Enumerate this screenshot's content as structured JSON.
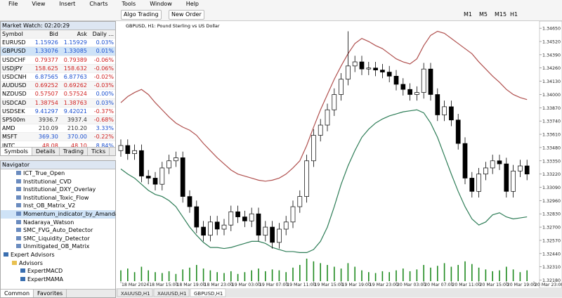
{
  "menu": [
    "File",
    "View",
    "Insert",
    "Charts",
    "Tools",
    "Window",
    "Help"
  ],
  "toolbar": {
    "algo_trading": "Algo Trading",
    "new_order": "New Order",
    "timeframes": [
      "M1",
      "M5",
      "M15",
      "H1"
    ]
  },
  "market_watch": {
    "title": "Market Watch: 02:20:29",
    "columns": [
      "Symbol",
      "Bid",
      "Ask",
      "Daily ..."
    ],
    "rows": [
      {
        "symbol": "EURUSD",
        "bid": "1.15926",
        "ask": "1.15929",
        "change": "0.03%",
        "tick": "up"
      },
      {
        "symbol": "GBPUSD",
        "bid": "1.33076",
        "ask": "1.33085",
        "change": "0.01%",
        "tick": "up",
        "selected": true
      },
      {
        "symbol": "USDCHF",
        "bid": "0.79377",
        "ask": "0.79389",
        "change": "-0.06%",
        "tick": "down"
      },
      {
        "symbol": "USDJPY",
        "bid": "158.625",
        "ask": "158.632",
        "change": "-0.06%",
        "tick": "down"
      },
      {
        "symbol": "USDCNH",
        "bid": "6.87565",
        "ask": "6.87763",
        "change": "-0.02%",
        "tick": "up"
      },
      {
        "symbol": "AUDUSD",
        "bid": "0.69252",
        "ask": "0.69262",
        "change": "-0.03%",
        "tick": "down"
      },
      {
        "symbol": "NZDUSD",
        "bid": "0.57507",
        "ask": "0.57524",
        "change": "0.00%",
        "tick": "down"
      },
      {
        "symbol": "USDCAD",
        "bid": "1.38754",
        "ask": "1.38763",
        "change": "0.03%",
        "tick": "down"
      },
      {
        "symbol": "USDSEK",
        "bid": "9.41297",
        "ask": "9.42021",
        "change": "-0.37%",
        "tick": "up"
      },
      {
        "symbol": "SP500m",
        "bid": "3936.7",
        "ask": "3937.4",
        "change": "-0.68%",
        "tick": "none"
      },
      {
        "symbol": "AMD",
        "bid": "210.09",
        "ask": "210.20",
        "change": "3.33%",
        "tick": "none"
      },
      {
        "symbol": "MSFT",
        "bid": "369.30",
        "ask": "370.00",
        "change": "-0.22%",
        "tick": "up"
      },
      {
        "symbol": "INTC",
        "bid": "48.08",
        "ask": "48.10",
        "change": "8.84%",
        "tick": "down"
      }
    ],
    "tabs": [
      "Symbols",
      "Details",
      "Trading",
      "Ticks"
    ]
  },
  "navigator": {
    "title": "Navigator",
    "items": [
      {
        "label": "ICT_True_Open",
        "kind": "indicator"
      },
      {
        "label": "Institutional_CVD",
        "kind": "indicator"
      },
      {
        "label": "Institutional_DXY_Overlay",
        "kind": "indicator"
      },
      {
        "label": "Institutional_Toxic_Flow",
        "kind": "indicator"
      },
      {
        "label": "Inst_OB_Matrix_V2",
        "kind": "indicator"
      },
      {
        "label": "Momentum_indicator_by_AmandaV",
        "kind": "indicator",
        "selected": true
      },
      {
        "label": "Nadaraya_Watson",
        "kind": "indicator"
      },
      {
        "label": "SMC_FVG_Auto_Detector",
        "kind": "indicator"
      },
      {
        "label": "SMC_Liquidity_Detector",
        "kind": "indicator"
      },
      {
        "label": "Unmitigated_OB_Matrix",
        "kind": "indicator"
      },
      {
        "label": "Expert Advisors",
        "kind": "root"
      },
      {
        "label": "Advisors",
        "kind": "folder"
      },
      {
        "label": "ExpertMACD",
        "kind": "expert"
      },
      {
        "label": "ExpertMAMA",
        "kind": "expert"
      }
    ],
    "tabs": [
      "Common",
      "Favorites"
    ]
  },
  "chart": {
    "title": "GBPUSD, H1:  Pound Sterling vs US Dollar",
    "ylim": [
      1.3217,
      1.3472
    ],
    "yticks": [
      {
        "value": 1.3218,
        "label": "1.32180"
      },
      {
        "value": 1.3231,
        "label": "1.32310"
      },
      {
        "value": 1.3244,
        "label": "1.32440"
      },
      {
        "value": 1.3257,
        "label": "1.32570"
      },
      {
        "value": 1.327,
        "label": "1.32700"
      },
      {
        "value": 1.3283,
        "label": "1.32830"
      },
      {
        "value": 1.3296,
        "label": "1.32960"
      },
      {
        "value": 1.3309,
        "label": "1.33090"
      },
      {
        "value": 1.3322,
        "label": "1.33220"
      },
      {
        "value": 1.3335,
        "label": "1.33350"
      },
      {
        "value": 1.3348,
        "label": "1.33480"
      },
      {
        "value": 1.3361,
        "label": "1.33610"
      },
      {
        "value": 1.3374,
        "label": "1.33740"
      },
      {
        "value": 1.3387,
        "label": "1.33870"
      },
      {
        "value": 1.34,
        "label": "1.34000"
      },
      {
        "value": 1.3413,
        "label": "1.34130"
      },
      {
        "value": 1.3426,
        "label": "1.34260"
      },
      {
        "value": 1.3439,
        "label": "1.34390"
      },
      {
        "value": 1.3452,
        "label": "1.34520"
      },
      {
        "value": 1.3465,
        "label": "1.34650"
      }
    ],
    "xlabels": [
      "18 Mar 2024",
      "18 Mar 15:00",
      "18 Mar 19:00",
      "18 Mar 23:00",
      "19 Mar 03:00",
      "19 Mar 07:00",
      "19 Mar 11:00",
      "19 Mar 15:00",
      "19 Mar 19:00",
      "19 Mar 23:00",
      "20 Mar 03:00",
      "20 Mar 07:00",
      "20 Mar 11:00",
      "20 Mar 15:00",
      "20 Mar 19:00",
      "20 Mar 23:00"
    ],
    "candles": [
      [
        1.3345,
        1.3356,
        1.3339,
        1.335
      ],
      [
        1.335,
        1.3356,
        1.3336,
        1.3342
      ],
      [
        1.3342,
        1.3351,
        1.3336,
        1.3345
      ],
      [
        1.3345,
        1.3351,
        1.3314,
        1.332
      ],
      [
        1.332,
        1.3326,
        1.3312,
        1.3318
      ],
      [
        1.3318,
        1.3324,
        1.3306,
        1.3312
      ],
      [
        1.3312,
        1.3334,
        1.3306,
        1.3328
      ],
      [
        1.3328,
        1.3341,
        1.3322,
        1.3335
      ],
      [
        1.3335,
        1.3344,
        1.3329,
        1.3338
      ],
      [
        1.3338,
        1.3344,
        1.3294,
        1.33
      ],
      [
        1.33,
        1.3306,
        1.3284,
        1.329
      ],
      [
        1.329,
        1.3296,
        1.3264,
        1.327
      ],
      [
        1.327,
        1.3276,
        1.3256,
        1.3262
      ],
      [
        1.3262,
        1.3281,
        1.3256,
        1.3275
      ],
      [
        1.3275,
        1.3281,
        1.3262,
        1.3268
      ],
      [
        1.3268,
        1.3278,
        1.3262,
        1.3272
      ],
      [
        1.3272,
        1.3291,
        1.3266,
        1.3285
      ],
      [
        1.3285,
        1.3291,
        1.3274,
        1.328
      ],
      [
        1.328,
        1.3286,
        1.327,
        1.3276
      ],
      [
        1.3276,
        1.3289,
        1.327,
        1.3283
      ],
      [
        1.3283,
        1.3289,
        1.3256,
        1.3262
      ],
      [
        1.3262,
        1.3276,
        1.3256,
        1.327
      ],
      [
        1.327,
        1.3276,
        1.3249,
        1.3255
      ],
      [
        1.3255,
        1.3274,
        1.3249,
        1.3268
      ],
      [
        1.3268,
        1.3281,
        1.3262,
        1.3275
      ],
      [
        1.3275,
        1.3296,
        1.3269,
        1.329
      ],
      [
        1.329,
        1.3306,
        1.3284,
        1.33
      ],
      [
        1.33,
        1.3341,
        1.3294,
        1.3335
      ],
      [
        1.3335,
        1.3366,
        1.3329,
        1.336
      ],
      [
        1.336,
        1.3376,
        1.3354,
        1.337
      ],
      [
        1.337,
        1.3391,
        1.3364,
        1.3385
      ],
      [
        1.3385,
        1.3406,
        1.3379,
        1.34
      ],
      [
        1.34,
        1.3421,
        1.3394,
        1.3415
      ],
      [
        1.3415,
        1.3462,
        1.3409,
        1.3428
      ],
      [
        1.3428,
        1.3438,
        1.3422,
        1.3432
      ],
      [
        1.3432,
        1.3438,
        1.3419,
        1.3425
      ],
      [
        1.3425,
        1.3432,
        1.3419,
        1.3426
      ],
      [
        1.3426,
        1.3432,
        1.3418,
        1.3424
      ],
      [
        1.3424,
        1.343,
        1.3416,
        1.3422
      ],
      [
        1.3422,
        1.3428,
        1.3412,
        1.3418
      ],
      [
        1.3418,
        1.3424,
        1.3404,
        1.341
      ],
      [
        1.341,
        1.3416,
        1.3399,
        1.3405
      ],
      [
        1.3405,
        1.3411,
        1.3394,
        1.34
      ],
      [
        1.34,
        1.3408,
        1.3394,
        1.3402
      ],
      [
        1.3402,
        1.3431,
        1.3396,
        1.3425
      ],
      [
        1.3425,
        1.3431,
        1.3394,
        1.34
      ],
      [
        1.34,
        1.3406,
        1.3374,
        1.338
      ],
      [
        1.338,
        1.3394,
        1.3374,
        1.3388
      ],
      [
        1.3388,
        1.3394,
        1.3369,
        1.3375
      ],
      [
        1.3375,
        1.3381,
        1.3346,
        1.3352
      ],
      [
        1.3352,
        1.3358,
        1.3312,
        1.3318
      ],
      [
        1.3318,
        1.3324,
        1.3299,
        1.3305
      ],
      [
        1.3305,
        1.3328,
        1.3299,
        1.3322
      ],
      [
        1.3322,
        1.3334,
        1.3316,
        1.3328
      ],
      [
        1.3328,
        1.3341,
        1.3322,
        1.3335
      ],
      [
        1.3335,
        1.3341,
        1.3326,
        1.3332
      ],
      [
        1.3332,
        1.3338,
        1.3299,
        1.3305
      ],
      [
        1.3305,
        1.3331,
        1.3299,
        1.3325
      ],
      [
        1.3325,
        1.3336,
        1.3319,
        1.333
      ],
      [
        1.333,
        1.3336,
        1.3316,
        1.3322
      ]
    ],
    "bands": {
      "upper": [
        1.3392,
        1.3398,
        1.3402,
        1.3405,
        1.34,
        1.3392,
        1.3385,
        1.3378,
        1.3372,
        1.3368,
        1.3365,
        1.336,
        1.3352,
        1.3345,
        1.3338,
        1.3332,
        1.3326,
        1.3322,
        1.332,
        1.3318,
        1.3316,
        1.3315,
        1.3316,
        1.3318,
        1.3322,
        1.3328,
        1.3335,
        1.335,
        1.3368,
        1.3385,
        1.34,
        1.3415,
        1.3428,
        1.344,
        1.345,
        1.3455,
        1.3452,
        1.3448,
        1.3445,
        1.344,
        1.3435,
        1.3432,
        1.343,
        1.3435,
        1.3448,
        1.3458,
        1.3462,
        1.346,
        1.3455,
        1.345,
        1.3445,
        1.344,
        1.3432,
        1.3425,
        1.3418,
        1.3412,
        1.3405,
        1.34,
        1.3397,
        1.3395
      ],
      "lower": [
        1.3327,
        1.3322,
        1.3318,
        1.3312,
        1.3306,
        1.3302,
        1.33,
        1.3296,
        1.329,
        1.328,
        1.327,
        1.3262,
        1.3255,
        1.325,
        1.325,
        1.3249,
        1.325,
        1.3252,
        1.3254,
        1.3256,
        1.3256,
        1.3254,
        1.325,
        1.3248,
        1.3246,
        1.3246,
        1.3245,
        1.3245,
        1.3248,
        1.3256,
        1.327,
        1.329,
        1.3312,
        1.333,
        1.3345,
        1.3358,
        1.3366,
        1.3372,
        1.3376,
        1.3379,
        1.3381,
        1.3383,
        1.3384,
        1.3385,
        1.3382,
        1.3372,
        1.3358,
        1.334,
        1.3322,
        1.3305,
        1.329,
        1.3278,
        1.3272,
        1.3275,
        1.3282,
        1.3284,
        1.328,
        1.3278,
        1.3279,
        1.328
      ],
      "upper_color": "#b0504e",
      "lower_color": "#2e7d57"
    },
    "volumes": [
      12,
      14,
      10,
      16,
      12,
      10,
      9,
      11,
      8,
      13,
      15,
      18,
      14,
      12,
      10,
      9,
      11,
      8,
      10,
      12,
      14,
      11,
      13,
      12,
      10,
      15,
      18,
      25,
      22,
      20,
      18,
      16,
      14,
      20,
      16,
      12,
      10,
      9,
      11,
      10,
      12,
      14,
      11,
      13,
      18,
      15,
      17,
      20,
      16,
      18,
      22,
      19,
      15,
      13,
      11,
      12,
      16,
      13,
      10,
      12
    ],
    "volume_color": "#1f8a1f"
  },
  "chart_tabs": [
    "XAUUSD,H1",
    "XAUUSD,H1",
    "GBPUSD,H1"
  ]
}
